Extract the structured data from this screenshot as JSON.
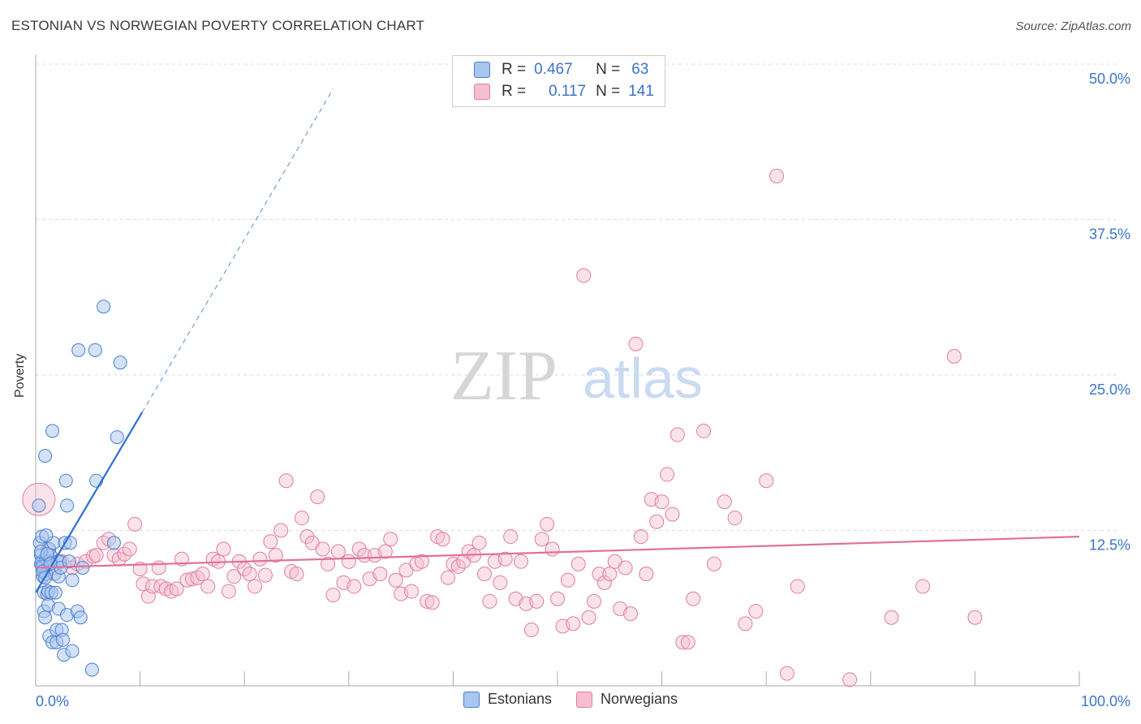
{
  "header": {
    "title": "ESTONIAN VS NORWEGIAN POVERTY CORRELATION CHART",
    "source": "Source: ZipAtlas.com"
  },
  "watermark": {
    "zip": "ZIP",
    "atlas": "atlas"
  },
  "legend": {
    "rows": [
      {
        "r_label": "R =",
        "r_value": "0.467",
        "n_label": "N =",
        "n_value": "63"
      },
      {
        "r_label": "R =",
        "r_value": "0.117",
        "n_label": "N =",
        "n_value": "141"
      }
    ]
  },
  "bottom_legend": {
    "estonians": "Estonians",
    "norwegians": "Norwegians"
  },
  "colors": {
    "estonians_fill": "#a9c6ef",
    "estonians_stroke": "#4a7fd0",
    "estonians_line": "#2c6fd1",
    "norwegians_fill": "#f5bfd0",
    "norwegians_stroke": "#e07ea0",
    "norwegians_line": "#e07098",
    "axis_label": "#3a74c9",
    "grid": "#dcdcdc"
  },
  "chart_data": {
    "type": "scatter",
    "title": "ESTONIAN VS NORWEGIAN POVERTY CORRELATION CHART",
    "xlabel": "",
    "ylabel": "Poverty",
    "xlim": [
      0,
      100
    ],
    "ylim": [
      0,
      50
    ],
    "x_tick_labels": [
      "0.0%",
      "100.0%"
    ],
    "y_ticks": [
      12.5,
      25.0,
      37.5,
      50.0
    ],
    "y_tick_labels": [
      "12.5%",
      "25.0%",
      "37.5%",
      "50.0%"
    ],
    "grid": true,
    "legend_position": "top-center",
    "series": [
      {
        "name": "Estonians",
        "r": 0.467,
        "n": 63,
        "trend": {
          "x0": 0.0,
          "y0": 7.5,
          "x1": 10.2,
          "y1": 22.0,
          "dash_to_x": 28.5,
          "dash_to_y": 48.0
        },
        "points": [
          [
            0.3,
            14.5
          ],
          [
            0.4,
            11.5
          ],
          [
            0.5,
            10.5
          ],
          [
            0.5,
            9.8
          ],
          [
            0.6,
            12.0
          ],
          [
            0.6,
            10.0
          ],
          [
            0.7,
            9.5
          ],
          [
            0.7,
            8.8
          ],
          [
            0.8,
            7.5
          ],
          [
            0.8,
            6.0
          ],
          [
            0.9,
            5.5
          ],
          [
            0.9,
            18.5
          ],
          [
            1.0,
            10.2
          ],
          [
            1.0,
            9.0
          ],
          [
            1.1,
            7.4
          ],
          [
            1.2,
            7.6
          ],
          [
            1.2,
            6.5
          ],
          [
            1.3,
            11.0
          ],
          [
            1.3,
            4.0
          ],
          [
            1.4,
            10.5
          ],
          [
            1.5,
            9.9
          ],
          [
            1.5,
            7.5
          ],
          [
            1.6,
            3.5
          ],
          [
            1.6,
            20.5
          ],
          [
            1.7,
            11.5
          ],
          [
            1.8,
            9.0
          ],
          [
            1.9,
            7.5
          ],
          [
            2.0,
            4.5
          ],
          [
            2.0,
            3.5
          ],
          [
            2.1,
            10.0
          ],
          [
            2.2,
            8.8
          ],
          [
            2.2,
            6.2
          ],
          [
            2.3,
            10.0
          ],
          [
            2.4,
            9.5
          ],
          [
            2.5,
            4.5
          ],
          [
            2.6,
            3.7
          ],
          [
            2.7,
            2.5
          ],
          [
            2.8,
            11.5
          ],
          [
            2.9,
            16.5
          ],
          [
            3.0,
            14.5
          ],
          [
            3.0,
            5.7
          ],
          [
            3.2,
            10.0
          ],
          [
            3.3,
            11.5
          ],
          [
            3.5,
            8.5
          ],
          [
            3.5,
            2.8
          ],
          [
            4.0,
            6.0
          ],
          [
            4.1,
            27.0
          ],
          [
            4.3,
            5.5
          ],
          [
            4.5,
            9.5
          ],
          [
            5.4,
            1.3
          ],
          [
            5.7,
            27.0
          ],
          [
            5.8,
            16.5
          ],
          [
            6.5,
            30.5
          ],
          [
            7.5,
            11.5
          ],
          [
            7.8,
            20.0
          ],
          [
            8.1,
            26.0
          ],
          [
            0.5,
            10.8
          ],
          [
            0.6,
            9.6
          ],
          [
            0.7,
            9.2
          ],
          [
            1.1,
            10.6
          ],
          [
            1.4,
            9.8
          ],
          [
            0.9,
            8.7
          ],
          [
            1.0,
            12.1
          ]
        ]
      },
      {
        "name": "Norwegians",
        "r": 0.117,
        "n": 141,
        "trend": {
          "x0": 0.0,
          "y0": 9.5,
          "x1": 100.0,
          "y1": 12.0
        },
        "points": [
          [
            0.3,
            15.0
          ],
          [
            1.2,
            11.0
          ],
          [
            1.8,
            9.5
          ],
          [
            2.5,
            10.0
          ],
          [
            3.5,
            9.5
          ],
          [
            4.0,
            9.8
          ],
          [
            4.8,
            10.0
          ],
          [
            5.5,
            10.4
          ],
          [
            5.8,
            10.5
          ],
          [
            6.5,
            11.5
          ],
          [
            7.0,
            11.8
          ],
          [
            7.5,
            10.5
          ],
          [
            8.0,
            10.2
          ],
          [
            8.5,
            10.6
          ],
          [
            9.0,
            11.0
          ],
          [
            9.5,
            13.0
          ],
          [
            10.0,
            9.4
          ],
          [
            10.3,
            8.2
          ],
          [
            10.8,
            7.2
          ],
          [
            11.2,
            8.0
          ],
          [
            11.8,
            9.5
          ],
          [
            12.0,
            8.0
          ],
          [
            12.5,
            7.8
          ],
          [
            13.0,
            7.6
          ],
          [
            13.5,
            7.8
          ],
          [
            14.0,
            10.2
          ],
          [
            14.5,
            8.5
          ],
          [
            15.0,
            8.6
          ],
          [
            15.5,
            8.7
          ],
          [
            16.0,
            9.0
          ],
          [
            16.5,
            8.0
          ],
          [
            17.0,
            10.2
          ],
          [
            17.5,
            10.0
          ],
          [
            18.0,
            11.0
          ],
          [
            18.5,
            7.6
          ],
          [
            19.0,
            8.8
          ],
          [
            19.5,
            10.0
          ],
          [
            20.0,
            9.4
          ],
          [
            20.5,
            9.0
          ],
          [
            21.0,
            8.0
          ],
          [
            21.5,
            10.2
          ],
          [
            22.0,
            8.9
          ],
          [
            22.5,
            11.6
          ],
          [
            23.0,
            10.5
          ],
          [
            23.5,
            12.5
          ],
          [
            24.0,
            16.5
          ],
          [
            24.5,
            9.2
          ],
          [
            25.0,
            9.0
          ],
          [
            25.5,
            13.5
          ],
          [
            26.0,
            12.0
          ],
          [
            26.5,
            11.5
          ],
          [
            27.0,
            15.2
          ],
          [
            27.5,
            11.0
          ],
          [
            28.0,
            9.8
          ],
          [
            28.5,
            7.3
          ],
          [
            29.0,
            10.8
          ],
          [
            29.5,
            8.3
          ],
          [
            30.0,
            10.0
          ],
          [
            30.5,
            8.0
          ],
          [
            31.0,
            11.0
          ],
          [
            31.5,
            10.5
          ],
          [
            32.0,
            8.6
          ],
          [
            32.5,
            10.5
          ],
          [
            33.0,
            9.0
          ],
          [
            33.5,
            10.8
          ],
          [
            34.0,
            11.8
          ],
          [
            34.5,
            8.5
          ],
          [
            35.0,
            7.4
          ],
          [
            35.5,
            9.3
          ],
          [
            36.0,
            7.6
          ],
          [
            36.5,
            9.8
          ],
          [
            37.0,
            10.0
          ],
          [
            37.5,
            6.8
          ],
          [
            38.0,
            6.7
          ],
          [
            38.5,
            12.0
          ],
          [
            39.0,
            11.8
          ],
          [
            39.5,
            8.7
          ],
          [
            40.0,
            9.8
          ],
          [
            40.5,
            9.6
          ],
          [
            41.0,
            10.0
          ],
          [
            41.5,
            10.8
          ],
          [
            42.0,
            10.5
          ],
          [
            42.5,
            11.5
          ],
          [
            43.0,
            9.0
          ],
          [
            43.5,
            6.8
          ],
          [
            44.0,
            10.0
          ],
          [
            44.5,
            8.3
          ],
          [
            45.0,
            10.2
          ],
          [
            45.5,
            12.0
          ],
          [
            46.0,
            7.0
          ],
          [
            46.5,
            10.0
          ],
          [
            47.0,
            6.6
          ],
          [
            47.5,
            4.5
          ],
          [
            48.0,
            6.8
          ],
          [
            48.5,
            11.8
          ],
          [
            49.0,
            13.0
          ],
          [
            49.5,
            11.0
          ],
          [
            50.0,
            7.0
          ],
          [
            50.5,
            4.8
          ],
          [
            51.0,
            8.5
          ],
          [
            51.5,
            5.0
          ],
          [
            52.0,
            9.8
          ],
          [
            52.5,
            33.0
          ],
          [
            53.0,
            5.5
          ],
          [
            53.5,
            6.8
          ],
          [
            54.0,
            9.0
          ],
          [
            54.5,
            8.3
          ],
          [
            55.0,
            9.0
          ],
          [
            55.5,
            10.0
          ],
          [
            56.0,
            6.2
          ],
          [
            56.5,
            9.5
          ],
          [
            57.0,
            5.8
          ],
          [
            57.5,
            27.5
          ],
          [
            58.0,
            12.0
          ],
          [
            58.5,
            9.0
          ],
          [
            59.0,
            15.0
          ],
          [
            59.5,
            13.2
          ],
          [
            60.0,
            14.8
          ],
          [
            60.5,
            17.0
          ],
          [
            61.0,
            13.8
          ],
          [
            61.5,
            20.2
          ],
          [
            62.0,
            3.5
          ],
          [
            62.5,
            3.5
          ],
          [
            63.0,
            7.0
          ],
          [
            64.0,
            20.5
          ],
          [
            65.0,
            9.8
          ],
          [
            66.0,
            14.8
          ],
          [
            67.0,
            13.5
          ],
          [
            68.0,
            5.0
          ],
          [
            69.0,
            6.0
          ],
          [
            70.0,
            16.5
          ],
          [
            71.0,
            41.0
          ],
          [
            72.0,
            1.0
          ],
          [
            73.0,
            8.0
          ],
          [
            78.0,
            0.5
          ],
          [
            82.0,
            5.5
          ],
          [
            85.0,
            8.0
          ],
          [
            88.0,
            26.5
          ],
          [
            90.0,
            5.5
          ]
        ]
      }
    ]
  }
}
